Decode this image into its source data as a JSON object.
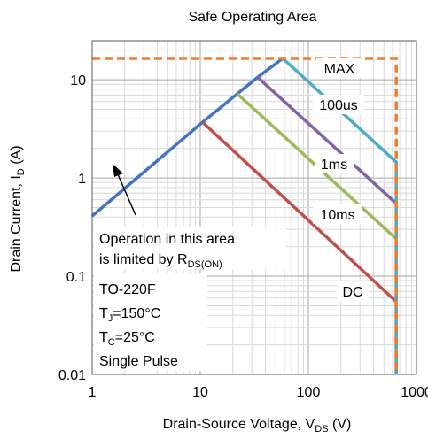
{
  "chart_data": {
    "type": "line",
    "title": "Safe Operating Area",
    "xlabel": {
      "text": "Drain-Source Voltage, V",
      "sub": "DS",
      "unit": " (V)"
    },
    "ylabel": {
      "text": "Drain Current, I",
      "sub": "D",
      "unit": " (A)"
    },
    "x_scale": "log",
    "y_scale": "log",
    "xlim": [
      1,
      1000
    ],
    "ylim": [
      0.01,
      25
    ],
    "x_ticks": [
      {
        "value": 1,
        "label": "1"
      },
      {
        "value": 10,
        "label": "10"
      },
      {
        "value": 100,
        "label": "100"
      },
      {
        "value": 1000,
        "label": "1000"
      }
    ],
    "y_ticks": [
      {
        "value": 10,
        "label": "10"
      },
      {
        "value": 1,
        "label": "1"
      },
      {
        "value": 0.1,
        "label": "0.1"
      },
      {
        "value": 0.01,
        "label": "0.01"
      }
    ],
    "grid": true,
    "colors": {
      "rdson": "#4472C4",
      "max": "#ED7D31",
      "us100": "#4BACC6",
      "ms1": "#8064A2",
      "ms10": "#9BBB59",
      "dc": "#C0504D"
    },
    "series": [
      {
        "key": "rdson",
        "points": [
          [
            1,
            0.41
          ],
          [
            10.5,
            3.7
          ],
          [
            22,
            7.2
          ],
          [
            34,
            10.6
          ],
          [
            58,
            16.5
          ]
        ]
      },
      {
        "key": "max",
        "dashed": true,
        "points": [
          [
            1,
            16.5
          ],
          [
            650,
            16.5
          ],
          [
            650,
            0.01
          ]
        ]
      },
      {
        "key": "us100",
        "points": [
          [
            58,
            16.5
          ],
          [
            650,
            1.45
          ],
          [
            650,
            0.01
          ]
        ]
      },
      {
        "key": "ms1",
        "points": [
          [
            34,
            10.6
          ],
          [
            650,
            0.55
          ],
          [
            650,
            0.01
          ]
        ]
      },
      {
        "key": "ms10",
        "points": [
          [
            22,
            7.2
          ],
          [
            650,
            0.24
          ],
          [
            650,
            0.01
          ]
        ]
      },
      {
        "key": "dc",
        "points": [
          [
            10.5,
            3.7
          ],
          [
            650,
            0.055
          ],
          [
            650,
            0.01
          ]
        ]
      }
    ],
    "curve_labels": {
      "max": "MAX",
      "us100": "100us",
      "ms1": "1ms",
      "ms10": "10ms",
      "dc": "DC"
    },
    "note": {
      "line1": "Operation in this area",
      "line2_text": "is limited by R",
      "line2_sub": "DS(ON)"
    },
    "conditions": {
      "package": "TO-220F",
      "tj": {
        "main": "T",
        "sub": "J",
        "rest": "=150°C"
      },
      "tc": {
        "main": "T",
        "sub": "C",
        "rest": "=25°C"
      },
      "pulse": "Single Pulse"
    }
  }
}
